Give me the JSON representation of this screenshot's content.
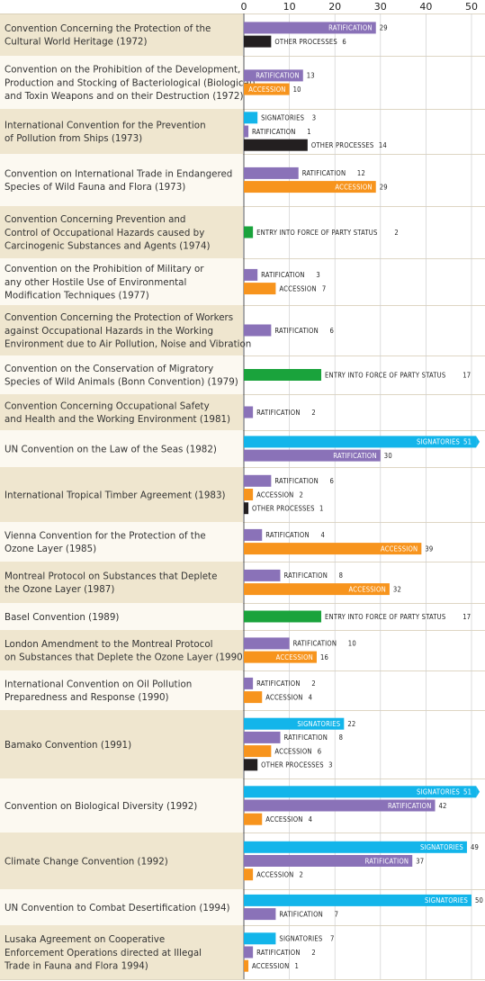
{
  "chart_data": {
    "type": "bar",
    "orientation": "horizontal",
    "xlim": [
      0,
      50
    ],
    "ticks": [
      "0",
      "10",
      "20",
      "30",
      "40",
      "50"
    ],
    "grid": true,
    "colors": {
      "RATIFICATION": "#8a72b8",
      "OTHER PROCESSES": "#231f20",
      "ACCESSION": "#f7941d",
      "SIGNATORIES": "#13b5ea",
      "ENTRY INTO FORCE OF PARTY STATUS": "#1aa33c"
    },
    "rows": [
      {
        "label": "Convention Concerning the Protection of the\nCultural World Heritage (1972)",
        "bars": [
          {
            "name": "RATIFICATION",
            "value": 29,
            "text": "29"
          },
          {
            "name": "OTHER PROCESSES",
            "value": 6,
            "text": "6"
          }
        ]
      },
      {
        "label": "Convention on the Prohibition of the Development,\nProduction and Stocking of Bacteriological (Biological)\nand Toxin Weapons and on their Destruction (1972)",
        "bars": [
          {
            "name": "RATIFICATION",
            "value": 13,
            "text": "13"
          },
          {
            "name": "ACCESSION",
            "value": 10,
            "text": "10"
          }
        ]
      },
      {
        "label": "International Convention for the Prevention\nof Pollution from Ships (1973)",
        "bars": [
          {
            "name": "SIGNATORIES",
            "value": 3,
            "text": "3"
          },
          {
            "name": "RATIFICATION",
            "value": 1,
            "text": "1"
          },
          {
            "name": "OTHER PROCESSES",
            "value": 14,
            "text": "14"
          }
        ]
      },
      {
        "label": "Convention on International Trade in Endangered\nSpecies of Wild Fauna and Flora (1973)",
        "bars": [
          {
            "name": "RATIFICATION",
            "value": 12,
            "text": "12"
          },
          {
            "name": "ACCESSION",
            "value": 29,
            "text": "29"
          }
        ]
      },
      {
        "label": "Convention Concerning Prevention and\nControl of Occupational Hazards caused by\nCarcinogenic Substances and Agents (1974)",
        "bars": [
          {
            "name": "ENTRY INTO FORCE OF PARTY STATUS",
            "value": 2,
            "text": "2"
          }
        ]
      },
      {
        "label": "Convention on the Prohibition of Military or\nany other Hostile Use of Environmental\nModification Techniques (1977)",
        "bars": [
          {
            "name": "RATIFICATION",
            "value": 3,
            "text": "3"
          },
          {
            "name": "ACCESSION",
            "value": 7,
            "text": "7"
          }
        ]
      },
      {
        "label": "Convention Concerning the Protection of Workers\nagainst Occupational Hazards in the Working\nEnvironment due to Air Pollution, Noise and Vibration",
        "bars": [
          {
            "name": "RATIFICATION",
            "value": 6,
            "text": "6"
          }
        ]
      },
      {
        "label": "Convention on the Conservation of Migratory\nSpecies of Wild Animals (Bonn Convention) (1979)",
        "bars": [
          {
            "name": "ENTRY INTO FORCE OF PARTY STATUS",
            "value": 17,
            "text": "17"
          }
        ]
      },
      {
        "label": "Convention Concerning Occupational Safety\nand Health and the Working Environment (1981)",
        "bars": [
          {
            "name": "RATIFICATION",
            "value": 2,
            "text": "2"
          }
        ]
      },
      {
        "label": "UN Convention on the Law of the Seas (1982)",
        "bars": [
          {
            "name": "SIGNATORIES",
            "value": 51,
            "text": "51"
          },
          {
            "name": "RATIFICATION",
            "value": 30,
            "text": "30"
          }
        ]
      },
      {
        "label": "International Tropical Timber Agreement (1983)",
        "bars": [
          {
            "name": "RATIFICATION",
            "value": 6,
            "text": "6"
          },
          {
            "name": "ACCESSION",
            "value": 2,
            "text": "2"
          },
          {
            "name": "OTHER PROCESSES",
            "value": 1,
            "text": "1"
          }
        ]
      },
      {
        "label": "Vienna Convention for the Protection of the\nOzone Layer (1985)",
        "bars": [
          {
            "name": "RATIFICATION",
            "value": 4,
            "text": "4"
          },
          {
            "name": "ACCESSION",
            "value": 39,
            "text": "39"
          }
        ]
      },
      {
        "label": "Montreal Protocol on Substances that Deplete\nthe Ozone Layer (1987)",
        "bars": [
          {
            "name": "RATIFICATION",
            "value": 8,
            "text": "8"
          },
          {
            "name": "ACCESSION",
            "value": 32,
            "text": "32"
          }
        ]
      },
      {
        "label": "Basel Convention (1989)",
        "bars": [
          {
            "name": "ENTRY INTO FORCE OF PARTY STATUS",
            "value": 17,
            "text": "17"
          }
        ]
      },
      {
        "label": "London Amendment to the Montreal Protocol\non Substances that Deplete the Ozone Layer (1990)",
        "bars": [
          {
            "name": "RATIFICATION",
            "value": 10,
            "text": "10"
          },
          {
            "name": "ACCESSION",
            "value": 16,
            "text": "16"
          }
        ]
      },
      {
        "label": "International Convention on Oil Pollution\nPreparedness and Response (1990)",
        "bars": [
          {
            "name": "RATIFICATION",
            "value": 2,
            "text": "2"
          },
          {
            "name": "ACCESSION",
            "value": 4,
            "text": "4"
          }
        ]
      },
      {
        "label": "Bamako Convention (1991)",
        "bars": [
          {
            "name": "SIGNATORIES",
            "value": 22,
            "text": "22"
          },
          {
            "name": "RATIFICATION",
            "value": 8,
            "text": "8"
          },
          {
            "name": "ACCESSION",
            "value": 6,
            "text": "6"
          },
          {
            "name": "OTHER PROCESSES",
            "value": 3,
            "text": "3"
          }
        ]
      },
      {
        "label": "Convention on Biological Diversity (1992)",
        "bars": [
          {
            "name": "SIGNATORIES",
            "value": 51,
            "text": "51"
          },
          {
            "name": "RATIFICATION",
            "value": 42,
            "text": "42"
          },
          {
            "name": "ACCESSION",
            "value": 4,
            "text": "4"
          }
        ]
      },
      {
        "label": "Climate Change Convention (1992)",
        "bars": [
          {
            "name": "SIGNATORIES",
            "value": 49,
            "text": "49"
          },
          {
            "name": "RATIFICATION",
            "value": 37,
            "text": "37"
          },
          {
            "name": "ACCESSION",
            "value": 2,
            "text": "2"
          }
        ]
      },
      {
        "label": "UN Convention to Combat Desertification (1994)",
        "bars": [
          {
            "name": "SIGNATORIES",
            "value": 50,
            "text": "50"
          },
          {
            "name": "RATIFICATION",
            "value": 7,
            "text": "7"
          }
        ]
      },
      {
        "label": "Lusaka Agreement on Cooperative\nEnforcement Operations directed at Illegal\nTrade in Fauna and Flora 1994)",
        "bars": [
          {
            "name": "SIGNATORIES",
            "value": 7,
            "text": "7"
          },
          {
            "name": "RATIFICATION",
            "value": 2,
            "text": "2"
          },
          {
            "name": "ACCESSION",
            "value": 1,
            "text": "1"
          }
        ]
      }
    ]
  }
}
